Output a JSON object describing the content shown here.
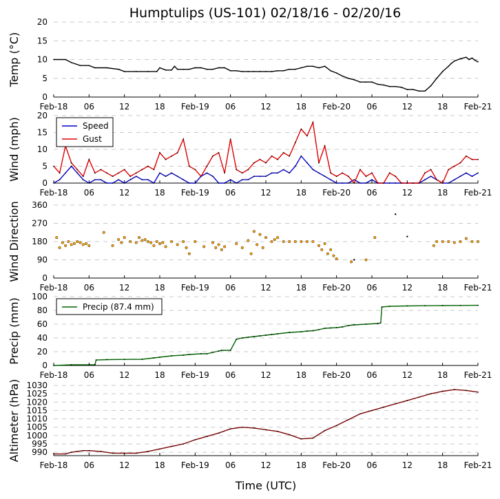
{
  "figure": {
    "title": "Humptulips (US-101) 02/18/16 - 02/20/16",
    "xlabel": "Time (UTC)",
    "x_tick_labels": [
      "Feb-18",
      "06",
      "12",
      "18",
      "Feb-19",
      "06",
      "12",
      "18",
      "Feb-20",
      "06",
      "12",
      "18",
      "Feb-21"
    ]
  },
  "chart_data": [
    {
      "type": "line",
      "ylabel": "Temp (°C)",
      "x_unit": "hours since 2016-02-18 00:00 UTC",
      "xlim": [
        0,
        72
      ],
      "ylim": [
        0,
        20
      ],
      "yticks": [
        0,
        5,
        10,
        15,
        20
      ],
      "grid": true,
      "series": [
        {
          "name": "Temp",
          "color": "#000000",
          "x": [
            0,
            2,
            3,
            4.5,
            6,
            7,
            9,
            11,
            12,
            14,
            16,
            17.5,
            18,
            19,
            20,
            20.5,
            21,
            22,
            23,
            24,
            25,
            26,
            27,
            28,
            29,
            30,
            31,
            32,
            33,
            34,
            35,
            36,
            37,
            38,
            39,
            40,
            41,
            42,
            43,
            44,
            45,
            46,
            47,
            48,
            49,
            50,
            51,
            52,
            53,
            54,
            55,
            56,
            57,
            58,
            59,
            60,
            61,
            62,
            63,
            64,
            65,
            66,
            67,
            67.5,
            68,
            69,
            70,
            70.5,
            71,
            71.5,
            72
          ],
          "values": [
            10,
            10,
            9.2,
            8.4,
            8.4,
            7.8,
            7.8,
            7.4,
            6.8,
            6.8,
            6.8,
            6.8,
            7.8,
            7.2,
            7.2,
            8.2,
            7.4,
            7.4,
            7.4,
            7.8,
            7.8,
            7.4,
            7.4,
            7.8,
            7.8,
            7.0,
            7.0,
            6.8,
            6.8,
            6.8,
            6.8,
            6.8,
            6.8,
            7.0,
            7.0,
            7.4,
            7.4,
            7.8,
            8.2,
            8.2,
            7.8,
            8.2,
            7.0,
            6.4,
            5.6,
            5.0,
            4.6,
            4.0,
            4.0,
            4.0,
            3.4,
            3.2,
            2.8,
            2.8,
            2.6,
            2.0,
            2.0,
            1.6,
            1.6,
            3.0,
            5.0,
            6.8,
            8.2,
            9.0,
            9.6,
            10.2,
            10.6,
            10.0,
            10.4,
            9.8,
            9.4
          ]
        }
      ]
    },
    {
      "type": "line",
      "ylabel": "Wind (mph)",
      "xlim": [
        0,
        72
      ],
      "ylim": [
        0,
        20
      ],
      "yticks": [
        0,
        5,
        10,
        15,
        20
      ],
      "grid": true,
      "legend": {
        "placement": "top-left",
        "entries": [
          "Speed",
          "Gust"
        ]
      },
      "series": [
        {
          "name": "Speed",
          "color": "#0000cc",
          "x": [
            0,
            1,
            2,
            3,
            4,
            5,
            6,
            7,
            8,
            9,
            10,
            11,
            12,
            13,
            14,
            15,
            16,
            17,
            18,
            19,
            20,
            21,
            22,
            23,
            24,
            25,
            26,
            27,
            28,
            29,
            30,
            31,
            32,
            33,
            34,
            35,
            36,
            37,
            38,
            39,
            40,
            41,
            42,
            43,
            44,
            45,
            46,
            47,
            48,
            49,
            50,
            51,
            52,
            53,
            54,
            55,
            56,
            57,
            58,
            59,
            60,
            61,
            62,
            63,
            64,
            65,
            66,
            67,
            68,
            69,
            70,
            71,
            72
          ],
          "values": [
            0,
            1,
            3,
            5,
            3,
            1,
            0,
            1,
            1,
            0,
            0,
            1,
            0,
            1,
            2,
            1,
            1,
            0,
            3,
            2,
            3,
            2,
            1,
            0,
            0,
            2,
            3,
            2,
            0,
            0,
            1,
            0,
            1,
            1,
            2,
            2,
            2,
            3,
            3,
            4,
            3,
            5,
            8,
            6,
            4,
            3,
            2,
            1,
            0,
            0,
            0,
            1,
            0,
            0,
            1,
            0,
            0,
            0,
            0,
            0,
            0,
            0,
            0,
            1,
            2,
            1,
            0,
            0,
            1,
            2,
            3,
            2,
            3
          ]
        },
        {
          "name": "Gust",
          "color": "#dd0000",
          "x": [
            0,
            1,
            2,
            3,
            4,
            5,
            6,
            7,
            8,
            9,
            10,
            11,
            12,
            13,
            14,
            15,
            16,
            17,
            18,
            19,
            20,
            21,
            22,
            23,
            24,
            25,
            26,
            27,
            28,
            29,
            30,
            31,
            32,
            33,
            34,
            35,
            36,
            37,
            38,
            39,
            40,
            41,
            42,
            43,
            44,
            45,
            46,
            47,
            48,
            49,
            50,
            51,
            52,
            53,
            54,
            55,
            56,
            57,
            58,
            59,
            60,
            61,
            62,
            63,
            64,
            65,
            66,
            67,
            68,
            69,
            70,
            71,
            72
          ],
          "values": [
            5,
            3,
            11,
            6,
            4,
            2,
            7,
            3,
            4,
            3,
            2,
            3,
            4,
            2,
            3,
            4,
            5,
            4,
            9,
            7,
            8,
            9,
            13,
            5,
            4,
            2,
            5,
            8,
            9,
            3,
            13,
            4,
            3,
            4,
            6,
            7,
            6,
            8,
            7,
            9,
            8,
            12,
            16,
            14,
            18,
            6,
            11,
            3,
            2,
            3,
            2,
            0,
            4,
            2,
            3,
            0,
            0,
            3,
            2,
            0,
            0,
            0,
            0,
            3,
            4,
            1,
            0,
            4,
            5,
            6,
            8,
            7,
            7
          ]
        }
      ]
    },
    {
      "type": "scatter",
      "ylabel": "Wind Direction",
      "xlim": [
        0,
        72
      ],
      "ylim": [
        0,
        360
      ],
      "yticks": [
        0,
        90,
        180,
        270,
        360
      ],
      "grid": true,
      "series": [
        {
          "name": "Direction",
          "color": "#ffa500",
          "x": [
            0.5,
            1,
            1.5,
            2,
            2.5,
            3,
            3.5,
            4,
            4.5,
            5,
            5.5,
            6,
            8.5,
            10,
            11,
            11.5,
            12,
            13,
            14,
            14.5,
            15,
            15.5,
            16,
            16.5,
            17,
            17.5,
            18,
            18.5,
            19,
            20,
            21,
            22,
            22.5,
            23,
            24,
            25.5,
            27,
            27.5,
            28,
            28.5,
            29,
            31,
            32,
            33,
            33.5,
            34,
            34.5,
            35,
            35.5,
            36,
            37,
            37.5,
            38,
            39,
            40,
            41,
            42,
            43,
            44,
            45,
            45.5,
            46,
            46.5,
            47,
            47.5,
            48,
            50.5,
            53,
            54.5,
            64.5,
            65,
            66,
            67,
            68,
            69,
            70,
            71,
            72
          ],
          "values": [
            200,
            150,
            175,
            160,
            180,
            165,
            170,
            180,
            175,
            165,
            170,
            160,
            225,
            160,
            190,
            175,
            200,
            180,
            175,
            200,
            185,
            190,
            180,
            175,
            160,
            180,
            170,
            175,
            155,
            180,
            165,
            180,
            150,
            120,
            180,
            155,
            175,
            150,
            165,
            140,
            155,
            170,
            150,
            185,
            120,
            230,
            165,
            215,
            150,
            200,
            180,
            190,
            200,
            180,
            180,
            180,
            180,
            180,
            180,
            160,
            140,
            170,
            120,
            140,
            110,
            95,
            80,
            90,
            200,
            160,
            180,
            180,
            180,
            175,
            180,
            195,
            180,
            180
          ]
        },
        {
          "name": "Outliers",
          "color": "#000000",
          "x": [
            51,
            58,
            60
          ],
          "values": [
            90,
            315,
            205
          ]
        }
      ]
    },
    {
      "type": "line",
      "ylabel": "Precip (mm)",
      "xlim": [
        0,
        72
      ],
      "ylim": [
        0,
        100
      ],
      "yticks": [
        0,
        20,
        40,
        60,
        80,
        100
      ],
      "grid": true,
      "legend": {
        "placement": "top-left",
        "entries": [
          "Precip (87.4 mm)"
        ]
      },
      "series": [
        {
          "name": "Precip (87.4 mm)",
          "color": "#006400",
          "x": [
            0,
            3,
            6,
            7,
            7.2,
            9,
            12,
            15,
            17,
            18,
            20,
            22,
            23,
            25,
            26,
            27,
            28,
            28.5,
            30,
            31,
            32,
            33,
            34,
            35,
            36,
            37,
            38,
            40,
            42,
            43,
            44,
            45,
            46,
            47,
            48,
            49,
            50,
            51,
            53,
            55,
            55.5,
            55.7,
            57,
            60,
            63,
            66,
            69,
            72
          ],
          "values": [
            0,
            1,
            1,
            1.2,
            8,
            8.5,
            8.8,
            9,
            11,
            12,
            14,
            15,
            16,
            17,
            17,
            19,
            21,
            22,
            22,
            38,
            40,
            41,
            42,
            43,
            44,
            45,
            46,
            48,
            49,
            50,
            50.5,
            52,
            54,
            54.5,
            55,
            56,
            58,
            59,
            60,
            61,
            62,
            85,
            86,
            86.5,
            86.8,
            87,
            87.2,
            87.4
          ]
        }
      ]
    },
    {
      "type": "line",
      "ylabel": "Altimeter (hPa)",
      "xlim": [
        0,
        72
      ],
      "ylim": [
        988,
        1030
      ],
      "yticks": [
        990,
        995,
        1000,
        1005,
        1010,
        1015,
        1020,
        1025,
        1030
      ],
      "grid": true,
      "series": [
        {
          "name": "Altimeter",
          "color": "#7a0000",
          "x": [
            0,
            2,
            3,
            4,
            5,
            6,
            8,
            10,
            12,
            14,
            16,
            18,
            20,
            22,
            24,
            26,
            28,
            30,
            32,
            34,
            36,
            38,
            40,
            42,
            44,
            46,
            48,
            50,
            52,
            54,
            56,
            58,
            60,
            62,
            64,
            66,
            68,
            70,
            72
          ],
          "values": [
            989,
            989,
            990,
            990.5,
            991,
            991,
            990.5,
            989.5,
            989.5,
            989.5,
            990.5,
            992,
            993.5,
            995,
            997.5,
            999.5,
            1001.5,
            1004,
            1005,
            1004.5,
            1003.5,
            1002.5,
            1000.5,
            998,
            998.5,
            1003,
            1006,
            1009.5,
            1013,
            1015,
            1017,
            1019,
            1021,
            1023,
            1025,
            1026.5,
            1027.5,
            1027,
            1026
          ]
        }
      ]
    }
  ]
}
